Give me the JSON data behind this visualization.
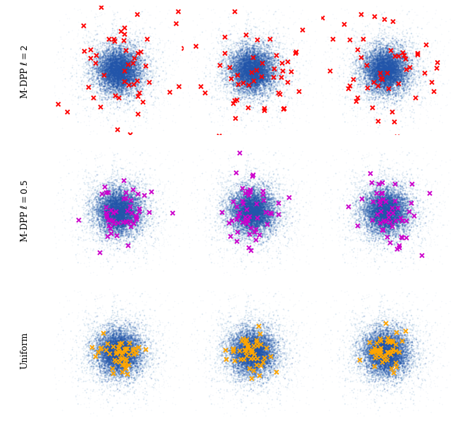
{
  "title": "",
  "row_labels": [
    "M-DPP $\\ell = 2$",
    "M-DPP $\\ell = 0.5$",
    "Uniform"
  ],
  "row_colors": [
    "red",
    "#cc00cc",
    "orange"
  ],
  "n_cols": 3,
  "n_rows": 3,
  "gaussian_std_data": 0.85,
  "n_data_points": 8000,
  "n_inducing": 50,
  "seed_data": 42,
  "dot_alpha": 0.18,
  "dot_size": 2.5,
  "dot_color_dark": "#2266aa",
  "dot_color_light": "#aaccee",
  "marker_size": 5.5,
  "marker_lw": 1.4,
  "background_color": "white",
  "fig_width": 6.4,
  "fig_height": 5.97,
  "inducing_std_row0": 1.5,
  "inducing_std_row1": 0.85,
  "inducing_std_row2": 0.5,
  "xlim": [
    -3.2,
    3.2
  ],
  "ylim": [
    -3.2,
    3.2
  ]
}
